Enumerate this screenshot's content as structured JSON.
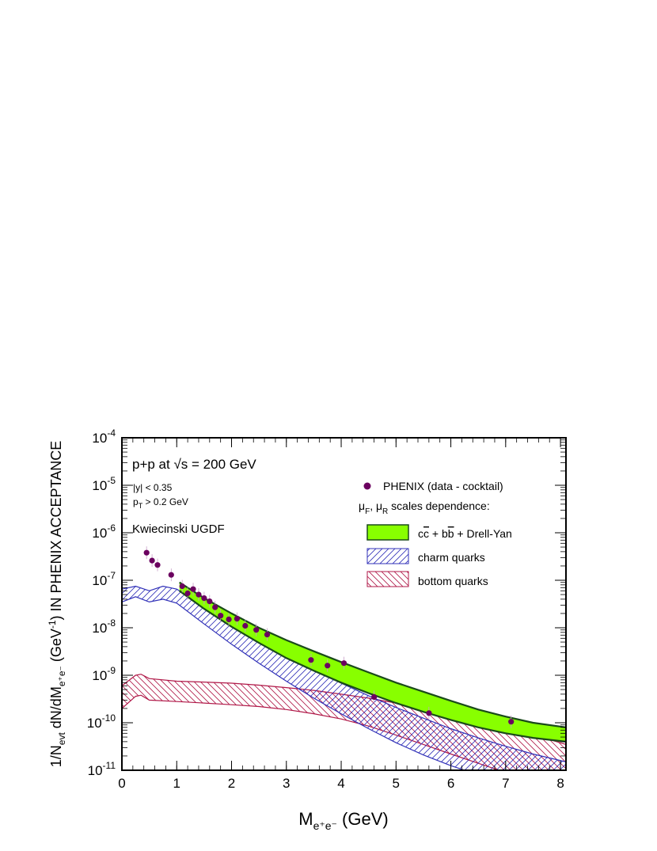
{
  "chart_data": {
    "type": "scatter",
    "xlabel": {
      "base": "M",
      "sub": "e⁺e⁻",
      "unit": " (GeV)"
    },
    "ylabel": "1/N_evt dN/dM_e+e- (GeV^-1) IN PHENIX ACCEPTANCE",
    "xlim": [
      0,
      8.1
    ],
    "ylim_log10": [
      -11,
      -4
    ],
    "log_y": true,
    "x_ticks": [
      0,
      1,
      2,
      3,
      4,
      5,
      6,
      7,
      8
    ],
    "y_tick_exponents": [
      -11,
      -10,
      -9,
      -8,
      -7,
      -6,
      -5,
      -4
    ],
    "annotations": {
      "reaction": "p+p  at √s = 200 GeV",
      "rapidity_cut": "|y| < 0.35",
      "pt_cut": "p_T > 0.2 GeV",
      "ugdf": "Kwiecinski UGDF"
    },
    "legend": {
      "position": "top-right",
      "data_label": "PHENIX (data - cocktail)",
      "scales_label": "μ_F, μ_R scales dependence:",
      "total_label": "c c̅ + b b̅ + Drell-Yan",
      "charm_label": "charm quarks",
      "bottom_label": "bottom quarks"
    },
    "colors": {
      "data": "#6b005f",
      "total_fill": "#88ff00",
      "total_edge": "#1a4a1a",
      "total_text": "#0a5a0a",
      "charm": "#3030b8",
      "bottom": "#b01848"
    },
    "series": [
      {
        "name": "PHENIX (data - cocktail)",
        "kind": "points",
        "points": [
          {
            "x": 0.45,
            "y": 3.8e-07
          },
          {
            "x": 0.55,
            "y": 2.6e-07
          },
          {
            "x": 0.65,
            "y": 2.1e-07
          },
          {
            "x": 0.9,
            "y": 1.3e-07
          },
          {
            "x": 1.1,
            "y": 7.5e-08
          },
          {
            "x": 1.2,
            "y": 5.3e-08
          },
          {
            "x": 1.3,
            "y": 6.5e-08
          },
          {
            "x": 1.4,
            "y": 5e-08
          },
          {
            "x": 1.5,
            "y": 4.2e-08
          },
          {
            "x": 1.6,
            "y": 3.6e-08
          },
          {
            "x": 1.7,
            "y": 2.7e-08
          },
          {
            "x": 1.8,
            "y": 1.8e-08
          },
          {
            "x": 1.95,
            "y": 1.5e-08
          },
          {
            "x": 2.1,
            "y": 1.55e-08
          },
          {
            "x": 2.25,
            "y": 1.1e-08
          },
          {
            "x": 2.45,
            "y": 9e-09
          },
          {
            "x": 2.65,
            "y": 7.2e-09
          },
          {
            "x": 3.45,
            "y": 2.1e-09
          },
          {
            "x": 3.75,
            "y": 1.6e-09
          },
          {
            "x": 4.05,
            "y": 1.8e-09
          },
          {
            "x": 4.6,
            "y": 3.5e-10
          },
          {
            "x": 5.6,
            "y": 1.6e-10
          },
          {
            "x": 7.1,
            "y": 1.05e-10
          }
        ]
      },
      {
        "name": "c c̅ + b b̅ + Drell-Yan",
        "kind": "band",
        "x": [
          1.05,
          1.5,
          2.0,
          2.5,
          3.0,
          3.5,
          4.0,
          4.5,
          5.0,
          5.5,
          6.0,
          6.5,
          7.0,
          7.5,
          8.1
        ],
        "upper": [
          9e-08,
          4.2e-08,
          2e-08,
          1e-08,
          5.5e-09,
          3.2e-09,
          1.9e-09,
          1.15e-09,
          7e-10,
          4.5e-10,
          2.9e-10,
          1.9e-10,
          1.35e-10,
          1e-10,
          8e-11
        ],
        "lower": [
          6e-08,
          2.5e-08,
          1.05e-08,
          4.8e-09,
          2.3e-09,
          1.25e-09,
          7e-10,
          4.2e-10,
          2.6e-10,
          1.7e-10,
          1.15e-10,
          8e-11,
          6e-11,
          4.8e-11,
          4e-11
        ]
      },
      {
        "name": "charm quarks",
        "kind": "band",
        "x": [
          0.0,
          0.25,
          0.5,
          0.75,
          1.0,
          1.5,
          2.0,
          2.5,
          3.0,
          3.5,
          4.0,
          4.5,
          5.0,
          5.5,
          6.0,
          6.5,
          7.0,
          7.5,
          8.1
        ],
        "upper": [
          6.5e-08,
          7.5e-08,
          6e-08,
          7.5e-08,
          6.5e-08,
          2.8e-08,
          1.2e-08,
          5.5e-09,
          2.6e-09,
          1.3e-09,
          6.8e-10,
          3.7e-10,
          2.1e-10,
          1.25e-10,
          7.5e-11,
          4.8e-11,
          3.2e-11,
          2.2e-11,
          1.5e-11
        ],
        "lower": [
          3.5e-08,
          4.5e-08,
          3.5e-08,
          4e-08,
          3.3e-08,
          1.2e-08,
          4.5e-09,
          1.8e-09,
          7.5e-10,
          3.3e-10,
          1.55e-10,
          7.5e-11,
          3.8e-11,
          2.1e-11,
          1.25e-11,
          8e-12,
          5e-12,
          3.5e-12,
          2.5e-12
        ]
      },
      {
        "name": "bottom quarks",
        "kind": "band",
        "x": [
          0.0,
          0.25,
          0.35,
          0.5,
          1.0,
          1.5,
          2.0,
          2.5,
          3.0,
          3.5,
          4.0,
          4.5,
          5.0,
          5.5,
          6.0,
          6.5,
          7.0,
          7.5,
          8.1
        ],
        "upper": [
          6e-10,
          1e-09,
          1.05e-09,
          8.5e-10,
          7.5e-10,
          7.2e-10,
          6.8e-10,
          6.2e-10,
          5.5e-10,
          4.8e-10,
          4e-10,
          3.3e-10,
          2.6e-10,
          2e-10,
          1.5e-10,
          1.1e-10,
          8e-11,
          5.6e-11,
          3.5e-11
        ],
        "lower": [
          2e-10,
          3.6e-10,
          3.8e-10,
          3e-10,
          2.8e-10,
          2.6e-10,
          2.4e-10,
          2.2e-10,
          1.9e-10,
          1.55e-10,
          1.2e-10,
          8.5e-11,
          5.5e-11,
          3.5e-11,
          2.2e-11,
          1.4e-11,
          9e-12,
          6e-12,
          3.5e-12
        ]
      }
    ]
  }
}
